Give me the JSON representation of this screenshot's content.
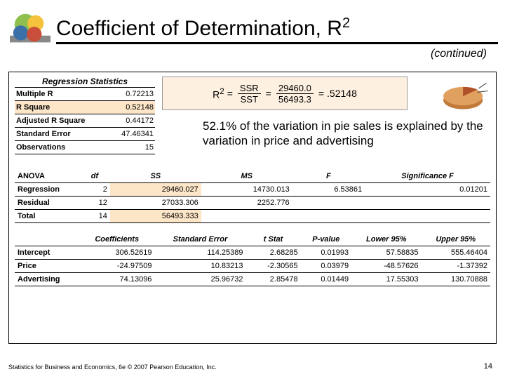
{
  "title_main": "Coefficient of Determination, R",
  "title_sup": "2",
  "continued": "(continued)",
  "regstats": {
    "title": "Regression Statistics",
    "rows": [
      {
        "label": "Multiple R",
        "value": "0.72213",
        "hl": false
      },
      {
        "label": "R Square",
        "value": "0.52148",
        "hl": true
      },
      {
        "label": "Adjusted R Square",
        "value": "0.44172",
        "hl": false
      },
      {
        "label": "Standard Error",
        "value": "47.46341",
        "hl": false
      },
      {
        "label": "Observations",
        "value": "15",
        "hl": false
      }
    ]
  },
  "formula": {
    "lhs": "R",
    "lhs_sup": "2",
    "eq": "=",
    "f1n": "SSR",
    "f1d": "SST",
    "f2n": "29460.0",
    "f2d": "56493.3",
    "result": ".52148"
  },
  "interpretation": "52.1% of the variation in pie sales is explained by the variation in price and advertising",
  "anova": {
    "head": [
      "ANOVA",
      "df",
      "SS",
      "MS",
      "F",
      "Significance F"
    ],
    "rows": [
      {
        "label": "Regression",
        "vals": [
          "2",
          "29460.027",
          "14730.013",
          "6.53861",
          "0.01201"
        ],
        "hl": [
          false,
          true,
          false,
          false,
          false
        ]
      },
      {
        "label": "Residual",
        "vals": [
          "12",
          "27033.306",
          "2252.776",
          "",
          ""
        ],
        "hl": [
          false,
          false,
          false,
          false,
          false
        ]
      },
      {
        "label": "Total",
        "vals": [
          "14",
          "56493.333",
          "",
          "",
          ""
        ],
        "hl": [
          false,
          true,
          false,
          false,
          false
        ]
      }
    ]
  },
  "coefs": {
    "head": [
      "",
      "Coefficients",
      "Standard Error",
      "t Stat",
      "P-value",
      "Lower 95%",
      "Upper 95%"
    ],
    "rows": [
      {
        "label": "Intercept",
        "vals": [
          "306.52619",
          "114.25389",
          "2.68285",
          "0.01993",
          "57.58835",
          "555.46404"
        ]
      },
      {
        "label": "Price",
        "vals": [
          "-24.97509",
          "10.83213",
          "-2.30565",
          "0.03979",
          "-48.57626",
          "-1.37392"
        ]
      },
      {
        "label": "Advertising",
        "vals": [
          "74.13096",
          "25.96732",
          "2.85478",
          "0.01449",
          "17.55303",
          "130.70888"
        ]
      }
    ]
  },
  "footer": "Statistics for Business and Economics, 6e © 2007 Pearson Education, Inc.",
  "page": "14",
  "colors": {
    "highlight": "#fde5c8",
    "logo_green": "#8fbf4f",
    "logo_yellow": "#f5c33b",
    "logo_blue": "#3b6fa8",
    "logo_red": "#c94f3a"
  }
}
